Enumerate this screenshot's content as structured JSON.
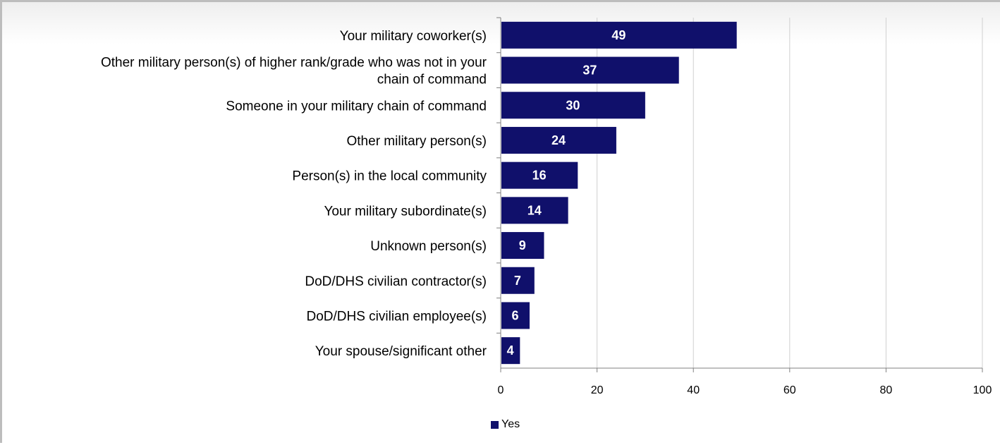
{
  "chart_data": {
    "type": "bar",
    "orientation": "horizontal",
    "categories": [
      "Your military coworker(s)",
      "Other military person(s) of higher rank/grade who was not in your chain of command",
      "Someone in your military chain of command",
      "Other military person(s)",
      "Person(s) in the local community",
      "Your military subordinate(s)",
      "Unknown person(s)",
      "DoD/DHS civilian contractor(s)",
      "DoD/DHS civilian employee(s)",
      "Your spouse/significant other"
    ],
    "category_lines": [
      [
        "Your military coworker(s)"
      ],
      [
        "Other military person(s) of higher rank/grade who was not in your",
        "chain of command"
      ],
      [
        "Someone in your military chain of command"
      ],
      [
        "Other military person(s)"
      ],
      [
        "Person(s) in the local community"
      ],
      [
        "Your military subordinate(s)"
      ],
      [
        "Unknown person(s)"
      ],
      [
        "DoD/DHS civilian contractor(s)"
      ],
      [
        "DoD/DHS civilian employee(s)"
      ],
      [
        "Your spouse/significant other"
      ]
    ],
    "series": [
      {
        "name": "Yes",
        "values": [
          49,
          37,
          30,
          24,
          16,
          14,
          9,
          7,
          6,
          4
        ]
      }
    ],
    "xlim": [
      0,
      100
    ],
    "xticks": [
      0,
      20,
      40,
      60,
      80,
      100
    ],
    "grid": true,
    "legend_position": "bottom",
    "colors": {
      "bar": "#10106b",
      "grid": "#d0d0d0",
      "axis": "#808080"
    }
  }
}
